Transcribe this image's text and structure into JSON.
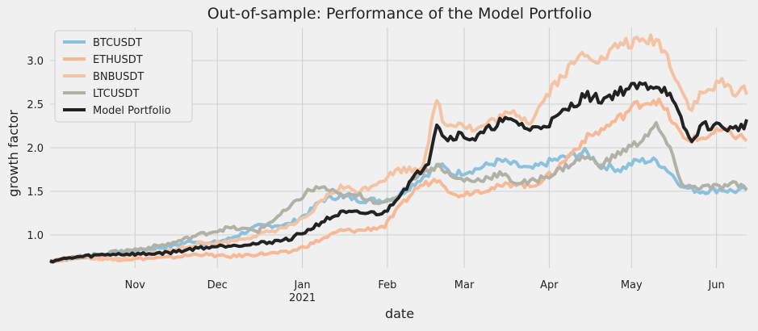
{
  "chart_data": {
    "type": "line",
    "title": "Out-of-sample: Performance of the Model Portfolio",
    "xlabel": "date",
    "ylabel": "growth factor",
    "x_start": "2020-10-01",
    "x_end": "2021-06-12",
    "ylim": [
      0.62,
      3.38
    ],
    "yticks": [
      1.0,
      1.5,
      2.0,
      2.5,
      3.0
    ],
    "ytick_labels": [
      "1.0",
      "1.5",
      "2.0",
      "2.5",
      "3.0"
    ],
    "xticks": [
      {
        "date": "2020-11-01",
        "label": "Nov",
        "sublabel": ""
      },
      {
        "date": "2020-12-01",
        "label": "Dec",
        "sublabel": ""
      },
      {
        "date": "2021-01-01",
        "label": "Jan",
        "sublabel": "2021"
      },
      {
        "date": "2021-02-01",
        "label": "Feb",
        "sublabel": ""
      },
      {
        "date": "2021-03-01",
        "label": "Mar",
        "sublabel": ""
      },
      {
        "date": "2021-04-01",
        "label": "Apr",
        "sublabel": ""
      },
      {
        "date": "2021-05-01",
        "label": "May",
        "sublabel": ""
      },
      {
        "date": "2021-06-01",
        "label": "Jun",
        "sublabel": ""
      }
    ],
    "grid": true,
    "legend_position": "top-left",
    "series": [
      {
        "name": "BTCUSDT",
        "color": "#8cc1de",
        "width": 4,
        "points": [
          [
            "2020-10-01",
            0.7
          ],
          [
            "2020-10-12",
            0.74
          ],
          [
            "2020-10-24",
            0.8
          ],
          [
            "2020-11-05",
            0.83
          ],
          [
            "2020-11-14",
            0.87
          ],
          [
            "2020-11-22",
            0.93
          ],
          [
            "2020-11-28",
            0.9
          ],
          [
            "2020-12-05",
            0.95
          ],
          [
            "2020-12-16",
            1.1
          ],
          [
            "2020-12-27",
            1.12
          ],
          [
            "2021-01-03",
            1.25
          ],
          [
            "2021-01-08",
            1.4
          ],
          [
            "2021-01-15",
            1.45
          ],
          [
            "2021-01-22",
            1.4
          ],
          [
            "2021-01-31",
            1.4
          ],
          [
            "2021-02-05",
            1.45
          ],
          [
            "2021-02-12",
            1.62
          ],
          [
            "2021-02-20",
            1.8
          ],
          [
            "2021-02-25",
            1.7
          ],
          [
            "2021-03-05",
            1.75
          ],
          [
            "2021-03-14",
            1.85
          ],
          [
            "2021-03-20",
            1.8
          ],
          [
            "2021-03-25",
            1.75
          ],
          [
            "2021-04-02",
            1.85
          ],
          [
            "2021-04-14",
            1.95
          ],
          [
            "2021-04-20",
            1.8
          ],
          [
            "2021-04-27",
            1.75
          ],
          [
            "2021-05-03",
            1.85
          ],
          [
            "2021-05-10",
            1.85
          ],
          [
            "2021-05-14",
            1.75
          ],
          [
            "2021-05-20",
            1.55
          ],
          [
            "2021-05-26",
            1.5
          ],
          [
            "2021-06-03",
            1.52
          ],
          [
            "2021-06-07",
            1.5
          ],
          [
            "2021-06-12",
            1.52
          ]
        ]
      },
      {
        "name": "ETHUSDT",
        "color": "#f8b896",
        "width": 4,
        "points": [
          [
            "2020-10-01",
            0.7
          ],
          [
            "2020-10-12",
            0.75
          ],
          [
            "2020-10-24",
            0.72
          ],
          [
            "2020-11-05",
            0.73
          ],
          [
            "2020-11-14",
            0.74
          ],
          [
            "2020-11-24",
            0.78
          ],
          [
            "2020-12-05",
            0.75
          ],
          [
            "2020-12-16",
            0.78
          ],
          [
            "2020-12-27",
            0.8
          ],
          [
            "2021-01-03",
            0.88
          ],
          [
            "2021-01-08",
            0.95
          ],
          [
            "2021-01-15",
            1.05
          ],
          [
            "2021-01-22",
            1.05
          ],
          [
            "2021-01-31",
            1.1
          ],
          [
            "2021-02-05",
            1.3
          ],
          [
            "2021-02-12",
            1.55
          ],
          [
            "2021-02-20",
            1.65
          ],
          [
            "2021-02-25",
            1.45
          ],
          [
            "2021-03-05",
            1.5
          ],
          [
            "2021-03-14",
            1.55
          ],
          [
            "2021-03-20",
            1.6
          ],
          [
            "2021-03-25",
            1.55
          ],
          [
            "2021-04-02",
            1.7
          ],
          [
            "2021-04-14",
            2.1
          ],
          [
            "2021-04-20",
            2.2
          ],
          [
            "2021-04-27",
            2.35
          ],
          [
            "2021-05-03",
            2.5
          ],
          [
            "2021-05-10",
            2.55
          ],
          [
            "2021-05-14",
            2.4
          ],
          [
            "2021-05-20",
            2.1
          ],
          [
            "2021-05-26",
            2.1
          ],
          [
            "2021-06-03",
            2.2
          ],
          [
            "2021-06-07",
            2.15
          ],
          [
            "2021-06-12",
            2.1
          ]
        ]
      },
      {
        "name": "BNBUSDT",
        "color": "#f4c3a3",
        "width": 4,
        "points": [
          [
            "2020-10-01",
            0.7
          ],
          [
            "2020-10-12",
            0.74
          ],
          [
            "2020-10-24",
            0.72
          ],
          [
            "2020-11-05",
            0.78
          ],
          [
            "2020-11-14",
            0.82
          ],
          [
            "2020-11-24",
            0.9
          ],
          [
            "2020-12-05",
            0.92
          ],
          [
            "2020-12-16",
            1.0
          ],
          [
            "2020-12-27",
            1.1
          ],
          [
            "2021-01-03",
            1.2
          ],
          [
            "2021-01-08",
            1.4
          ],
          [
            "2021-01-15",
            1.55
          ],
          [
            "2021-01-22",
            1.5
          ],
          [
            "2021-01-31",
            1.65
          ],
          [
            "2021-02-05",
            1.75
          ],
          [
            "2021-02-10",
            1.75
          ],
          [
            "2021-02-14",
            1.8
          ],
          [
            "2021-02-19",
            2.55
          ],
          [
            "2021-02-22",
            2.25
          ],
          [
            "2021-02-27",
            2.3
          ],
          [
            "2021-03-05",
            2.2
          ],
          [
            "2021-03-14",
            2.35
          ],
          [
            "2021-03-20",
            2.4
          ],
          [
            "2021-03-25",
            2.3
          ],
          [
            "2021-04-02",
            2.7
          ],
          [
            "2021-04-14",
            3.1
          ],
          [
            "2021-04-20",
            3.0
          ],
          [
            "2021-04-27",
            3.2
          ],
          [
            "2021-05-03",
            3.2
          ],
          [
            "2021-05-10",
            3.25
          ],
          [
            "2021-05-14",
            3.05
          ],
          [
            "2021-05-20",
            2.6
          ],
          [
            "2021-05-23",
            2.45
          ],
          [
            "2021-05-26",
            2.6
          ],
          [
            "2021-06-03",
            2.75
          ],
          [
            "2021-06-07",
            2.65
          ],
          [
            "2021-06-12",
            2.65
          ]
        ]
      },
      {
        "name": "LTCUSDT",
        "color": "#b0b2a8",
        "width": 4,
        "points": [
          [
            "2020-10-01",
            0.7
          ],
          [
            "2020-10-12",
            0.75
          ],
          [
            "2020-10-24",
            0.8
          ],
          [
            "2020-11-05",
            0.85
          ],
          [
            "2020-11-14",
            0.9
          ],
          [
            "2020-11-24",
            1.0
          ],
          [
            "2020-12-05",
            1.08
          ],
          [
            "2020-12-16",
            1.05
          ],
          [
            "2020-12-27",
            1.3
          ],
          [
            "2021-01-03",
            1.5
          ],
          [
            "2021-01-08",
            1.55
          ],
          [
            "2021-01-15",
            1.45
          ],
          [
            "2021-01-22",
            1.45
          ],
          [
            "2021-01-31",
            1.35
          ],
          [
            "2021-02-05",
            1.45
          ],
          [
            "2021-02-12",
            1.7
          ],
          [
            "2021-02-20",
            1.8
          ],
          [
            "2021-02-25",
            1.65
          ],
          [
            "2021-03-05",
            1.62
          ],
          [
            "2021-03-14",
            1.7
          ],
          [
            "2021-03-20",
            1.6
          ],
          [
            "2021-03-25",
            1.6
          ],
          [
            "2021-04-02",
            1.7
          ],
          [
            "2021-04-14",
            1.9
          ],
          [
            "2021-04-20",
            1.8
          ],
          [
            "2021-04-27",
            1.95
          ],
          [
            "2021-05-03",
            2.05
          ],
          [
            "2021-05-10",
            2.25
          ],
          [
            "2021-05-14",
            2.05
          ],
          [
            "2021-05-20",
            1.55
          ],
          [
            "2021-05-26",
            1.55
          ],
          [
            "2021-06-03",
            1.55
          ],
          [
            "2021-06-07",
            1.58
          ],
          [
            "2021-06-12",
            1.55
          ]
        ]
      },
      {
        "name": "Model Portfolio",
        "color": "#222222",
        "width": 4,
        "points": [
          [
            "2020-10-01",
            0.7
          ],
          [
            "2020-10-12",
            0.75
          ],
          [
            "2020-10-24",
            0.78
          ],
          [
            "2020-11-05",
            0.78
          ],
          [
            "2020-11-14",
            0.8
          ],
          [
            "2020-11-24",
            0.85
          ],
          [
            "2020-12-05",
            0.88
          ],
          [
            "2020-12-16",
            0.9
          ],
          [
            "2020-12-27",
            0.95
          ],
          [
            "2021-01-03",
            1.05
          ],
          [
            "2021-01-08",
            1.15
          ],
          [
            "2021-01-15",
            1.25
          ],
          [
            "2021-01-22",
            1.25
          ],
          [
            "2021-01-31",
            1.25
          ],
          [
            "2021-02-05",
            1.45
          ],
          [
            "2021-02-12",
            1.7
          ],
          [
            "2021-02-16",
            1.85
          ],
          [
            "2021-02-19",
            2.3
          ],
          [
            "2021-02-22",
            2.1
          ],
          [
            "2021-02-27",
            2.15
          ],
          [
            "2021-03-05",
            2.1
          ],
          [
            "2021-03-14",
            2.3
          ],
          [
            "2021-03-20",
            2.3
          ],
          [
            "2021-03-25",
            2.2
          ],
          [
            "2021-04-02",
            2.3
          ],
          [
            "2021-04-14",
            2.6
          ],
          [
            "2021-04-20",
            2.55
          ],
          [
            "2021-04-27",
            2.65
          ],
          [
            "2021-05-03",
            2.7
          ],
          [
            "2021-05-10",
            2.72
          ],
          [
            "2021-05-14",
            2.65
          ],
          [
            "2021-05-20",
            2.25
          ],
          [
            "2021-05-23",
            2.05
          ],
          [
            "2021-05-26",
            2.25
          ],
          [
            "2021-06-03",
            2.25
          ],
          [
            "2021-06-07",
            2.2
          ],
          [
            "2021-06-12",
            2.28
          ]
        ]
      }
    ]
  }
}
